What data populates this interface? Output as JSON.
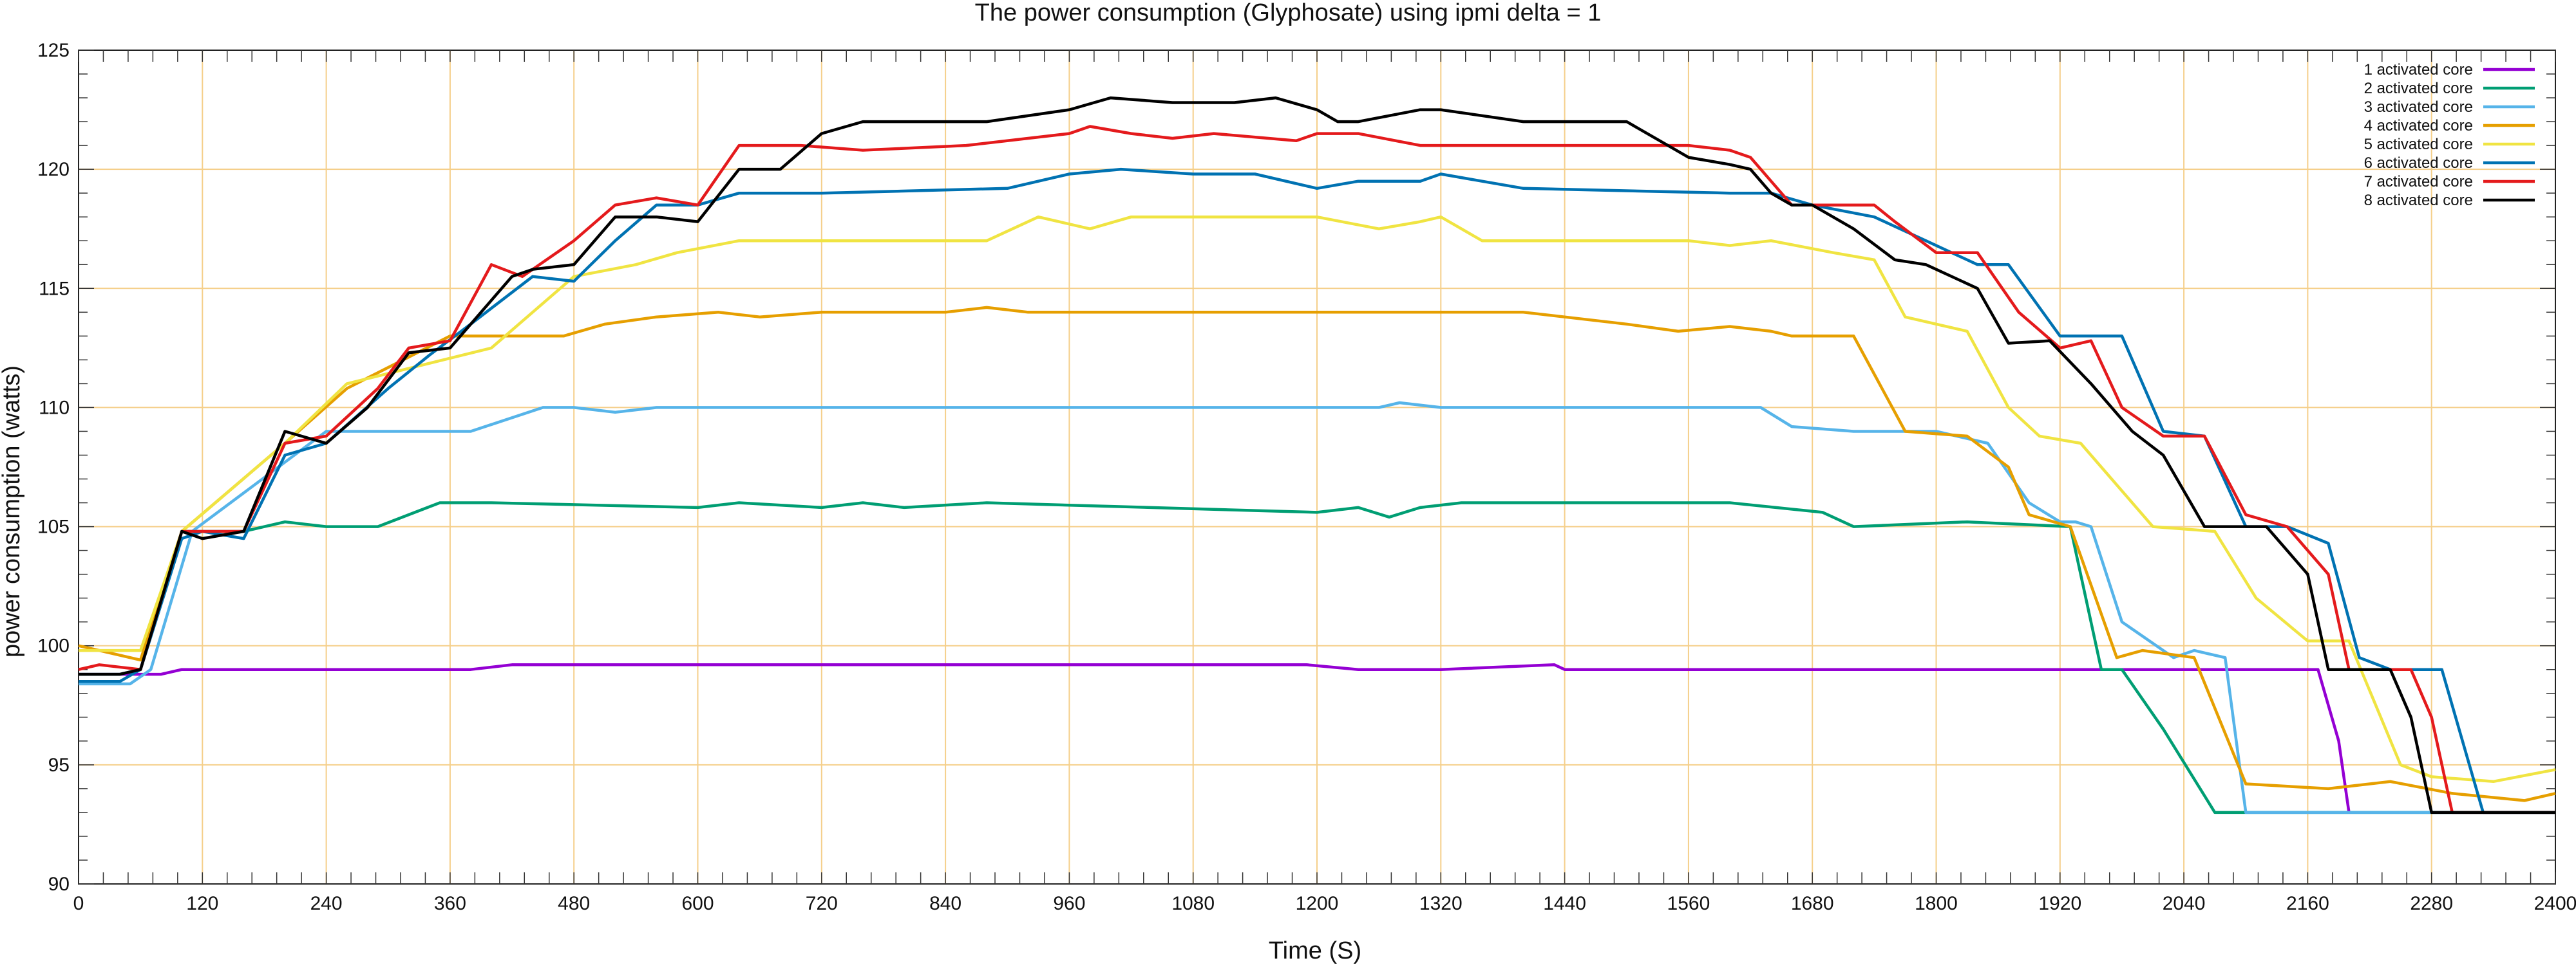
{
  "chart_data": {
    "type": "line",
    "title": "The power consumption (Glyphosate) using ipmi delta = 1",
    "xlabel": "Time (S)",
    "ylabel": "power consumption (watts)",
    "xlim": [
      0,
      2400
    ],
    "ylim": [
      90,
      125
    ],
    "xticks": [
      "0",
      "120",
      "240",
      "360",
      "480",
      "600",
      "720",
      "840",
      "960",
      "1080",
      "1200",
      "1320",
      "1440",
      "1560",
      "1680",
      "1800",
      "1920",
      "2040",
      "2160",
      "2280",
      "2400"
    ],
    "yticks": [
      "90",
      "95",
      "100",
      "105",
      "110",
      "115",
      "120",
      "125"
    ],
    "grid": true,
    "legend_position": "top-right",
    "series": [
      {
        "name": "1 activated core",
        "color": "#9400d3",
        "x": [
          0,
          60,
          80,
          100,
          380,
          420,
          1190,
          1240,
          1280,
          1320,
          1430,
          1440,
          1470,
          2170,
          2190,
          2200
        ],
        "y": [
          98.8,
          98.8,
          98.8,
          99,
          99,
          99.2,
          99.2,
          99,
          99,
          99,
          99.2,
          99,
          99,
          99,
          96,
          93
        ]
      },
      {
        "name": "2 activated core",
        "color": "#009e73",
        "x": [
          0,
          40,
          60,
          100,
          120,
          160,
          200,
          240,
          290,
          350,
          400,
          600,
          640,
          720,
          760,
          800,
          880,
          1200,
          1240,
          1270,
          1300,
          1340,
          1600,
          1690,
          1720,
          1830,
          1930,
          1960,
          1980,
          2020,
          2070,
          2400
        ],
        "y": [
          98.8,
          98.8,
          99,
          104.8,
          104.8,
          104.8,
          105.2,
          105,
          105,
          106,
          106,
          105.8,
          106,
          105.8,
          106,
          105.8,
          106,
          105.6,
          105.8,
          105.4,
          105.8,
          106,
          106,
          105.6,
          105,
          105.2,
          105,
          99,
          99,
          96.5,
          93,
          93
        ]
      },
      {
        "name": "3 activated core",
        "color": "#56b4e9",
        "x": [
          0,
          50,
          70,
          110,
          240,
          380,
          450,
          480,
          520,
          560,
          600,
          1260,
          1280,
          1320,
          1630,
          1660,
          1720,
          1800,
          1850,
          1890,
          1920,
          1935,
          1950,
          1980,
          2030,
          2050,
          2080,
          2100,
          2400
        ],
        "y": [
          98.4,
          98.4,
          99,
          104.8,
          109,
          109,
          110,
          110,
          109.8,
          110,
          110,
          110,
          110.2,
          110,
          110,
          109.2,
          109,
          109,
          108.5,
          106,
          105.2,
          105.2,
          105,
          101,
          99.5,
          99.8,
          99.5,
          93,
          93
        ]
      },
      {
        "name": "4 activated core",
        "color": "#e69f00",
        "x": [
          0,
          60,
          100,
          200,
          260,
          360,
          470,
          510,
          560,
          620,
          660,
          720,
          840,
          880,
          920,
          1000,
          1080,
          1400,
          1440,
          1500,
          1550,
          1600,
          1640,
          1660,
          1720,
          1770,
          1830,
          1870,
          1890,
          1930,
          1975,
          2000,
          2050,
          2100,
          2180,
          2240,
          2300,
          2370,
          2400
        ],
        "y": [
          100,
          99.4,
          104.8,
          108.5,
          110.8,
          113,
          113,
          113.5,
          113.8,
          114,
          113.8,
          114,
          114,
          114.2,
          114,
          114,
          114,
          114,
          113.8,
          113.5,
          113.2,
          113.4,
          113.2,
          113,
          113,
          109,
          108.8,
          107.5,
          105.5,
          105,
          99.5,
          99.8,
          99.5,
          94.2,
          94,
          94.3,
          93.8,
          93.5,
          93.8
        ]
      },
      {
        "name": "5 activated core",
        "color": "#f0e442",
        "x": [
          0,
          60,
          100,
          200,
          260,
          400,
          440,
          480,
          540,
          580,
          640,
          880,
          930,
          980,
          1020,
          1060,
          1200,
          1260,
          1300,
          1320,
          1360,
          1560,
          1600,
          1640,
          1700,
          1740,
          1770,
          1830,
          1870,
          1900,
          1940,
          1970,
          2010,
          2070,
          2110,
          2160,
          2200,
          2250,
          2280,
          2340,
          2400
        ],
        "y": [
          99.8,
          99.8,
          104.8,
          108.5,
          111,
          112.5,
          114,
          115.5,
          116,
          116.5,
          117,
          117,
          118,
          117.5,
          118,
          118,
          118,
          117.5,
          117.8,
          118,
          117,
          117,
          116.8,
          117,
          116.5,
          116.2,
          113.8,
          113.2,
          110,
          108.8,
          108.5,
          107,
          105,
          104.8,
          102,
          100.2,
          100.2,
          95,
          94.5,
          94.3,
          94.8
        ]
      },
      {
        "name": "6 activated core",
        "color": "#0072b2",
        "x": [
          0,
          40,
          60,
          100,
          120,
          160,
          200,
          240,
          300,
          340,
          380,
          440,
          480,
          520,
          560,
          600,
          640,
          720,
          900,
          960,
          1010,
          1080,
          1140,
          1200,
          1240,
          1300,
          1320,
          1360,
          1400,
          1600,
          1640,
          1680,
          1740,
          1790,
          1840,
          1870,
          1920,
          1980,
          2020,
          2060,
          2100,
          2140,
          2180,
          2210,
          2240,
          2290,
          2330,
          2400
        ],
        "y": [
          98.5,
          98.5,
          99,
          104.5,
          104.8,
          104.5,
          108,
          108.5,
          110.8,
          112.2,
          113.5,
          115.5,
          115.3,
          117,
          118.5,
          118.5,
          119,
          119,
          119.2,
          119.8,
          120,
          119.8,
          119.8,
          119.2,
          119.5,
          119.5,
          119.8,
          119.5,
          119.2,
          119,
          119,
          118.5,
          118,
          117,
          116,
          116,
          113,
          113,
          109,
          108.8,
          105,
          105,
          104.3,
          99.5,
          99,
          99,
          93,
          93
        ]
      },
      {
        "name": "7 activated core",
        "color": "#e41a1c",
        "x": [
          0,
          20,
          60,
          100,
          160,
          200,
          240,
          290,
          320,
          360,
          400,
          430,
          480,
          520,
          560,
          600,
          640,
          700,
          760,
          860,
          960,
          980,
          1020,
          1060,
          1100,
          1180,
          1200,
          1240,
          1300,
          1440,
          1560,
          1600,
          1620,
          1660,
          1680,
          1740,
          1760,
          1800,
          1840,
          1880,
          1920,
          1950,
          1980,
          2020,
          2060,
          2100,
          2140,
          2180,
          2200,
          2240,
          2260,
          2280,
          2300,
          2400
        ],
        "y": [
          99,
          99.2,
          99,
          104.8,
          104.8,
          108.5,
          108.8,
          110.8,
          112.5,
          112.8,
          116,
          115.5,
          117,
          118.5,
          118.8,
          118.5,
          121,
          121,
          120.8,
          121,
          121.5,
          121.8,
          121.5,
          121.3,
          121.5,
          121.2,
          121.5,
          121.5,
          121,
          121,
          121,
          120.8,
          120.5,
          118.5,
          118.5,
          118.5,
          117.8,
          116.5,
          116.5,
          114,
          112.5,
          112.8,
          110,
          108.8,
          108.8,
          105.5,
          105,
          103,
          99,
          99,
          99,
          97,
          93,
          93
        ]
      },
      {
        "name": "8 activated core",
        "color": "#000000",
        "x": [
          0,
          40,
          60,
          100,
          120,
          160,
          200,
          240,
          280,
          320,
          360,
          400,
          420,
          440,
          480,
          520,
          560,
          600,
          640,
          680,
          720,
          760,
          880,
          960,
          1000,
          1060,
          1120,
          1160,
          1200,
          1220,
          1240,
          1300,
          1320,
          1400,
          1500,
          1540,
          1560,
          1600,
          1620,
          1640,
          1660,
          1680,
          1720,
          1760,
          1790,
          1840,
          1870,
          1910,
          1950,
          1990,
          2020,
          2060,
          2100,
          2120,
          2160,
          2180,
          2200,
          2240,
          2260,
          2280,
          2300,
          2400
        ],
        "y": [
          98.8,
          98.8,
          99,
          104.8,
          104.5,
          104.8,
          109,
          108.5,
          110,
          112.3,
          112.5,
          114.5,
          115.5,
          115.8,
          116,
          118,
          118,
          117.8,
          120,
          120,
          121.5,
          122,
          122,
          122.5,
          123,
          122.8,
          122.8,
          123,
          122.5,
          122,
          122,
          122.5,
          122.5,
          122,
          122,
          121,
          120.5,
          120.2,
          120,
          119,
          118.5,
          118.5,
          117.5,
          116.2,
          116,
          115,
          112.7,
          112.8,
          111,
          109,
          108,
          105,
          105,
          105,
          103,
          99,
          99,
          99,
          97,
          93,
          93,
          93
        ]
      }
    ]
  }
}
